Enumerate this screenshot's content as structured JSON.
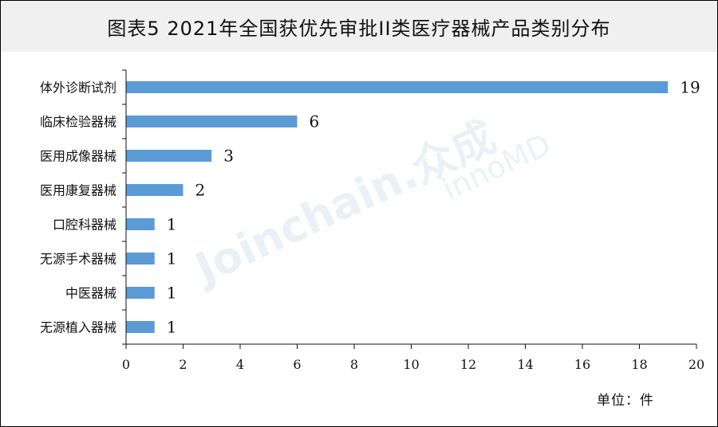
{
  "chart_data": {
    "type": "bar",
    "orientation": "horizontal",
    "title": "图表5  2021年全国获优先审批II类医疗器械产品类别分布",
    "categories": [
      "体外诊断试剂",
      "临床检验器械",
      "医用成像器械",
      "医用康复器械",
      "口腔科器械",
      "无源手术器械",
      "中医器械",
      "无源植入器械"
    ],
    "values": [
      19,
      6,
      3,
      2,
      1,
      1,
      1,
      1
    ],
    "xlim": [
      0,
      20
    ],
    "xticks": [
      0,
      2,
      4,
      6,
      8,
      10,
      12,
      14,
      16,
      18,
      20
    ],
    "unit_label": "单位：件",
    "bar_color": "#5b9bd5",
    "grid": false
  },
  "watermark": {
    "brand": "Joinchain.众成",
    "logo": "innoMD"
  }
}
